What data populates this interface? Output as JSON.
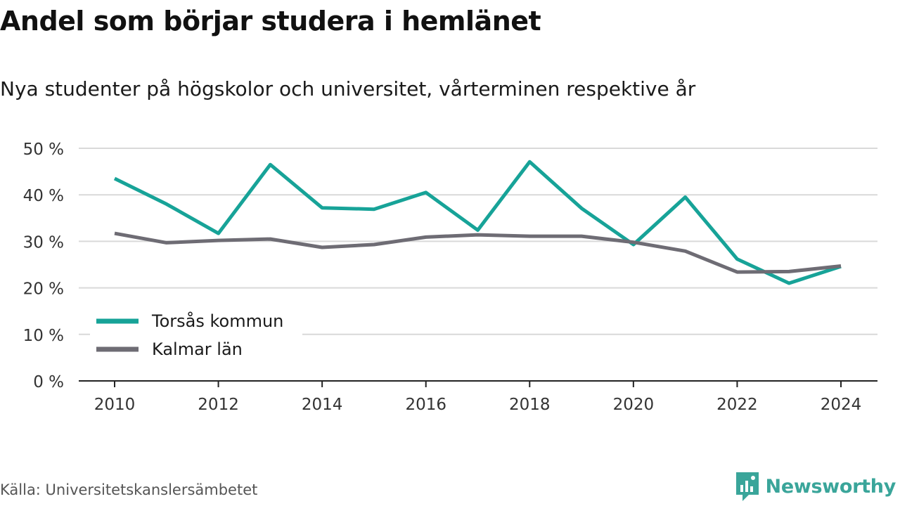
{
  "header": {
    "title": "Andel som börjar studera i hemlänet",
    "subtitle": "Nya studenter på högskolor och universitet, vårterminen respektive år"
  },
  "footer": {
    "source": "Källa: Universitetskanslersämbetet",
    "brand": "Newsworthy",
    "brand_icon": "bar-chart-speech-bubble-icon"
  },
  "colors": {
    "torsas": "#17a398",
    "kalmar": "#6e6c74",
    "grid": "#d9d9d9",
    "axis": "#222222",
    "brand": "#3aa59a"
  },
  "chart_data": {
    "type": "line",
    "x": [
      2010,
      2011,
      2012,
      2013,
      2014,
      2015,
      2016,
      2017,
      2018,
      2019,
      2020,
      2021,
      2022,
      2023,
      2024
    ],
    "series": [
      {
        "name": "Torsås kommun",
        "color": "#17a398",
        "values": [
          43.5,
          38.0,
          31.7,
          46.5,
          37.2,
          36.9,
          40.5,
          32.4,
          47.1,
          37.1,
          29.3,
          39.5,
          26.2,
          21.0,
          24.6
        ]
      },
      {
        "name": "Kalmar län",
        "color": "#6e6c74",
        "values": [
          31.7,
          29.7,
          30.2,
          30.5,
          28.7,
          29.3,
          30.9,
          31.4,
          31.1,
          31.1,
          29.8,
          27.9,
          23.4,
          23.5,
          24.7
        ]
      }
    ],
    "ylim": [
      0,
      50
    ],
    "yticks": [
      0,
      10,
      20,
      30,
      40,
      50
    ],
    "ytick_labels": [
      "0 %",
      "10 %",
      "20 %",
      "30 %",
      "40 %",
      "50 %"
    ],
    "xticks": [
      2010,
      2012,
      2014,
      2016,
      2018,
      2020,
      2022,
      2024
    ],
    "xtick_labels": [
      "2010",
      "2012",
      "2014",
      "2016",
      "2018",
      "2020",
      "2022",
      "2024"
    ],
    "xlabel": "",
    "ylabel": "",
    "grid": true,
    "legend_position": "bottom-left"
  }
}
